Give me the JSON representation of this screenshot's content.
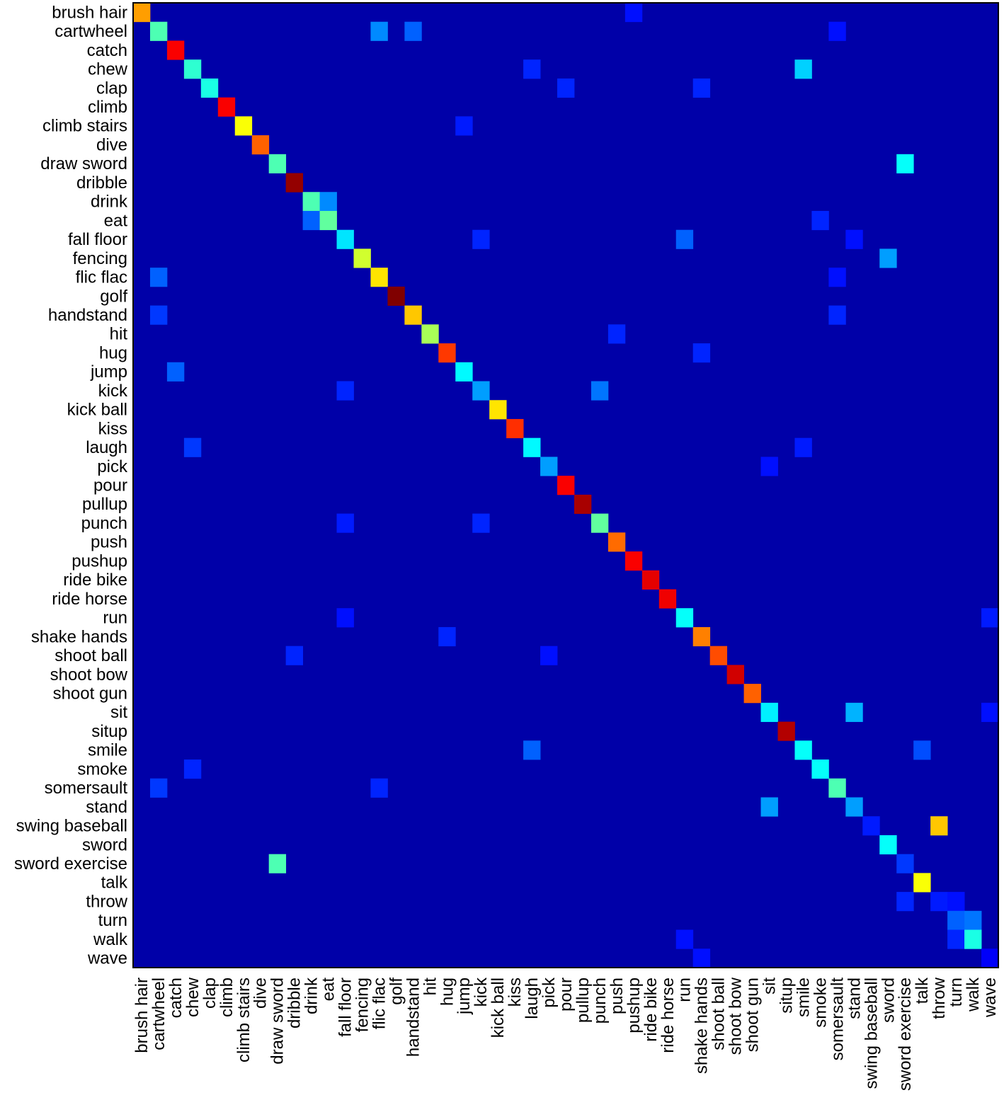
{
  "chart_data": {
    "type": "heatmap",
    "title": "",
    "xlabel": "",
    "ylabel": "",
    "colormap": "jet",
    "value_range": [
      0,
      1
    ],
    "background_value": 0.04,
    "categories": [
      "brush hair",
      "cartwheel",
      "catch",
      "chew",
      "clap",
      "climb",
      "climb stairs",
      "dive",
      "draw sword",
      "dribble",
      "drink",
      "eat",
      "fall floor",
      "fencing",
      "flic flac",
      "golf",
      "handstand",
      "hit",
      "hug",
      "jump",
      "kick",
      "kick ball",
      "kiss",
      "laugh",
      "pick",
      "pour",
      "pullup",
      "punch",
      "push",
      "pushup",
      "ride bike",
      "ride horse",
      "run",
      "shake hands",
      "shoot ball",
      "shoot bow",
      "shoot gun",
      "sit",
      "situp",
      "smile",
      "smoke",
      "somersault",
      "stand",
      "swing baseball",
      "sword",
      "sword exercise",
      "talk",
      "throw",
      "turn",
      "walk",
      "wave"
    ],
    "diagonal": [
      0.72,
      0.45,
      0.88,
      0.42,
      0.4,
      0.88,
      0.62,
      0.78,
      0.45,
      0.98,
      0.45,
      0.47,
      0.35,
      0.58,
      0.65,
      1.0,
      0.68,
      0.54,
      0.82,
      0.37,
      0.28,
      0.65,
      0.83,
      0.37,
      0.28,
      0.88,
      0.96,
      0.47,
      0.77,
      0.88,
      0.9,
      0.89,
      0.38,
      0.75,
      0.8,
      0.92,
      0.78,
      0.36,
      0.95,
      0.38,
      0.38,
      0.45,
      0.28,
      0.15,
      0.38,
      0.18,
      0.62,
      0.15,
      0.22,
      0.4,
      0.12
    ],
    "off_diagonal": [
      {
        "row": "brush hair",
        "col": "pushup",
        "value": 0.14
      },
      {
        "row": "cartwheel",
        "col": "flic flac",
        "value": 0.26
      },
      {
        "row": "cartwheel",
        "col": "handstand",
        "value": 0.22
      },
      {
        "row": "cartwheel",
        "col": "somersault",
        "value": 0.14
      },
      {
        "row": "chew",
        "col": "laugh",
        "value": 0.16
      },
      {
        "row": "chew",
        "col": "smile",
        "value": 0.33
      },
      {
        "row": "clap",
        "col": "pour",
        "value": 0.16
      },
      {
        "row": "clap",
        "col": "shake hands",
        "value": 0.16
      },
      {
        "row": "climb stairs",
        "col": "jump",
        "value": 0.15
      },
      {
        "row": "draw sword",
        "col": "sword exercise",
        "value": 0.38
      },
      {
        "row": "drink",
        "col": "eat",
        "value": 0.26
      },
      {
        "row": "eat",
        "col": "drink",
        "value": 0.22
      },
      {
        "row": "eat",
        "col": "smoke",
        "value": 0.16
      },
      {
        "row": "fall floor",
        "col": "kick",
        "value": 0.16
      },
      {
        "row": "fall floor",
        "col": "run",
        "value": 0.22
      },
      {
        "row": "fall floor",
        "col": "stand",
        "value": 0.14
      },
      {
        "row": "fencing",
        "col": "sword",
        "value": 0.28
      },
      {
        "row": "flic flac",
        "col": "cartwheel",
        "value": 0.22
      },
      {
        "row": "flic flac",
        "col": "somersault",
        "value": 0.14
      },
      {
        "row": "handstand",
        "col": "cartwheel",
        "value": 0.18
      },
      {
        "row": "handstand",
        "col": "somersault",
        "value": 0.16
      },
      {
        "row": "hit",
        "col": "push",
        "value": 0.16
      },
      {
        "row": "hug",
        "col": "shake hands",
        "value": 0.16
      },
      {
        "row": "jump",
        "col": "catch",
        "value": 0.22
      },
      {
        "row": "kick",
        "col": "fall floor",
        "value": 0.16
      },
      {
        "row": "kick",
        "col": "punch",
        "value": 0.24
      },
      {
        "row": "laugh",
        "col": "chew",
        "value": 0.18
      },
      {
        "row": "laugh",
        "col": "smile",
        "value": 0.15
      },
      {
        "row": "pick",
        "col": "sit",
        "value": 0.14
      },
      {
        "row": "punch",
        "col": "fall floor",
        "value": 0.15
      },
      {
        "row": "punch",
        "col": "kick",
        "value": 0.16
      },
      {
        "row": "run",
        "col": "fall floor",
        "value": 0.14
      },
      {
        "row": "run",
        "col": "wave",
        "value": 0.15
      },
      {
        "row": "shake hands",
        "col": "hug",
        "value": 0.16
      },
      {
        "row": "shoot ball",
        "col": "dribble",
        "value": 0.16
      },
      {
        "row": "shoot ball",
        "col": "pick",
        "value": 0.14
      },
      {
        "row": "sit",
        "col": "stand",
        "value": 0.3
      },
      {
        "row": "sit",
        "col": "wave",
        "value": 0.14
      },
      {
        "row": "smile",
        "col": "laugh",
        "value": 0.22
      },
      {
        "row": "smile",
        "col": "talk",
        "value": 0.2
      },
      {
        "row": "smoke",
        "col": "chew",
        "value": 0.16
      },
      {
        "row": "somersault",
        "col": "cartwheel",
        "value": 0.18
      },
      {
        "row": "somersault",
        "col": "flic flac",
        "value": 0.16
      },
      {
        "row": "stand",
        "col": "sit",
        "value": 0.28
      },
      {
        "row": "swing baseball",
        "col": "throw",
        "value": 0.68
      },
      {
        "row": "sword exercise",
        "col": "draw sword",
        "value": 0.45
      },
      {
        "row": "throw",
        "col": "sword exercise",
        "value": 0.16
      },
      {
        "row": "throw",
        "col": "turn",
        "value": 0.14
      },
      {
        "row": "turn",
        "col": "walk",
        "value": 0.24
      },
      {
        "row": "walk",
        "col": "turn",
        "value": 0.16
      },
      {
        "row": "walk",
        "col": "run",
        "value": 0.14
      },
      {
        "row": "wave",
        "col": "shake hands",
        "value": 0.14
      }
    ]
  }
}
